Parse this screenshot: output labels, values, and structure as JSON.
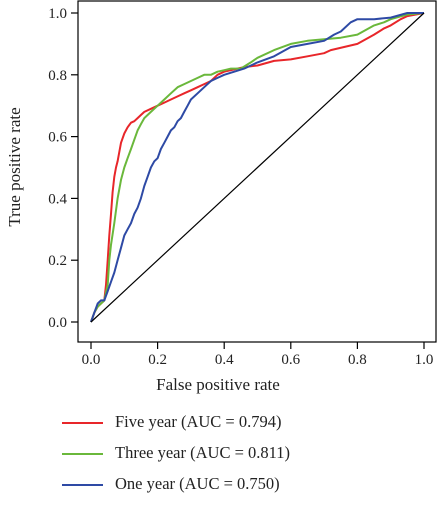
{
  "chart_data": {
    "type": "line",
    "xlabel": "False positive rate",
    "ylabel": "True positive rate",
    "xlim": [
      0,
      1
    ],
    "ylim": [
      0,
      1
    ],
    "x_ticks": [
      "0.0",
      "0.2",
      "0.4",
      "0.6",
      "0.8",
      "1.0"
    ],
    "y_ticks": [
      "0.0",
      "0.2",
      "0.4",
      "0.6",
      "0.8",
      "1.0"
    ],
    "grid": false,
    "legend_position": "below",
    "series": [
      {
        "name": "Five year (AUC = 0.794)",
        "color": "#e8262a",
        "points": [
          [
            0,
            0
          ],
          [
            0.01,
            0.03
          ],
          [
            0.02,
            0.05
          ],
          [
            0.03,
            0.06
          ],
          [
            0.04,
            0.07
          ],
          [
            0.045,
            0.12
          ],
          [
            0.05,
            0.2
          ],
          [
            0.055,
            0.28
          ],
          [
            0.06,
            0.35
          ],
          [
            0.065,
            0.42
          ],
          [
            0.07,
            0.47
          ],
          [
            0.075,
            0.5
          ],
          [
            0.08,
            0.52
          ],
          [
            0.085,
            0.55
          ],
          [
            0.09,
            0.58
          ],
          [
            0.1,
            0.61
          ],
          [
            0.11,
            0.63
          ],
          [
            0.12,
            0.645
          ],
          [
            0.13,
            0.65
          ],
          [
            0.14,
            0.66
          ],
          [
            0.15,
            0.67
          ],
          [
            0.16,
            0.68
          ],
          [
            0.18,
            0.69
          ],
          [
            0.2,
            0.7
          ],
          [
            0.22,
            0.71
          ],
          [
            0.24,
            0.72
          ],
          [
            0.26,
            0.73
          ],
          [
            0.28,
            0.74
          ],
          [
            0.3,
            0.75
          ],
          [
            0.32,
            0.76
          ],
          [
            0.34,
            0.77
          ],
          [
            0.36,
            0.78
          ],
          [
            0.38,
            0.8
          ],
          [
            0.4,
            0.81
          ],
          [
            0.42,
            0.815
          ],
          [
            0.44,
            0.82
          ],
          [
            0.46,
            0.825
          ],
          [
            0.5,
            0.83
          ],
          [
            0.55,
            0.845
          ],
          [
            0.6,
            0.85
          ],
          [
            0.65,
            0.86
          ],
          [
            0.7,
            0.87
          ],
          [
            0.72,
            0.88
          ],
          [
            0.76,
            0.89
          ],
          [
            0.8,
            0.9
          ],
          [
            0.85,
            0.93
          ],
          [
            0.88,
            0.95
          ],
          [
            0.9,
            0.96
          ],
          [
            0.93,
            0.98
          ],
          [
            0.95,
            0.99
          ],
          [
            1,
            1
          ]
        ]
      },
      {
        "name": "Three year (AUC = 0.811)",
        "color": "#6ab83b",
        "points": [
          [
            0,
            0
          ],
          [
            0.01,
            0.03
          ],
          [
            0.02,
            0.05
          ],
          [
            0.03,
            0.06
          ],
          [
            0.04,
            0.07
          ],
          [
            0.05,
            0.12
          ],
          [
            0.055,
            0.2
          ],
          [
            0.06,
            0.25
          ],
          [
            0.07,
            0.32
          ],
          [
            0.08,
            0.4
          ],
          [
            0.09,
            0.46
          ],
          [
            0.1,
            0.5
          ],
          [
            0.11,
            0.53
          ],
          [
            0.12,
            0.56
          ],
          [
            0.13,
            0.59
          ],
          [
            0.14,
            0.62
          ],
          [
            0.15,
            0.64
          ],
          [
            0.16,
            0.66
          ],
          [
            0.18,
            0.68
          ],
          [
            0.2,
            0.7
          ],
          [
            0.22,
            0.72
          ],
          [
            0.24,
            0.74
          ],
          [
            0.26,
            0.76
          ],
          [
            0.28,
            0.77
          ],
          [
            0.3,
            0.78
          ],
          [
            0.32,
            0.79
          ],
          [
            0.34,
            0.8
          ],
          [
            0.36,
            0.8
          ],
          [
            0.38,
            0.81
          ],
          [
            0.4,
            0.815
          ],
          [
            0.42,
            0.82
          ],
          [
            0.45,
            0.82
          ],
          [
            0.48,
            0.84
          ],
          [
            0.5,
            0.855
          ],
          [
            0.55,
            0.88
          ],
          [
            0.6,
            0.9
          ],
          [
            0.65,
            0.91
          ],
          [
            0.7,
            0.915
          ],
          [
            0.75,
            0.92
          ],
          [
            0.8,
            0.93
          ],
          [
            0.85,
            0.96
          ],
          [
            0.88,
            0.97
          ],
          [
            0.9,
            0.98
          ],
          [
            0.95,
            0.995
          ],
          [
            1,
            1
          ]
        ]
      },
      {
        "name": "One year (AUC = 0.750)",
        "color": "#2e4aa5",
        "points": [
          [
            0,
            0
          ],
          [
            0.01,
            0.03
          ],
          [
            0.02,
            0.06
          ],
          [
            0.03,
            0.07
          ],
          [
            0.04,
            0.07
          ],
          [
            0.05,
            0.1
          ],
          [
            0.06,
            0.13
          ],
          [
            0.07,
            0.16
          ],
          [
            0.08,
            0.2
          ],
          [
            0.09,
            0.24
          ],
          [
            0.1,
            0.28
          ],
          [
            0.11,
            0.3
          ],
          [
            0.12,
            0.32
          ],
          [
            0.13,
            0.35
          ],
          [
            0.14,
            0.37
          ],
          [
            0.15,
            0.4
          ],
          [
            0.16,
            0.44
          ],
          [
            0.17,
            0.47
          ],
          [
            0.18,
            0.5
          ],
          [
            0.19,
            0.52
          ],
          [
            0.2,
            0.53
          ],
          [
            0.21,
            0.56
          ],
          [
            0.22,
            0.58
          ],
          [
            0.23,
            0.6
          ],
          [
            0.24,
            0.62
          ],
          [
            0.25,
            0.63
          ],
          [
            0.26,
            0.65
          ],
          [
            0.27,
            0.66
          ],
          [
            0.28,
            0.68
          ],
          [
            0.29,
            0.7
          ],
          [
            0.3,
            0.72
          ],
          [
            0.32,
            0.74
          ],
          [
            0.34,
            0.76
          ],
          [
            0.36,
            0.78
          ],
          [
            0.38,
            0.79
          ],
          [
            0.4,
            0.8
          ],
          [
            0.43,
            0.81
          ],
          [
            0.46,
            0.82
          ],
          [
            0.5,
            0.84
          ],
          [
            0.55,
            0.86
          ],
          [
            0.6,
            0.89
          ],
          [
            0.65,
            0.9
          ],
          [
            0.7,
            0.91
          ],
          [
            0.73,
            0.93
          ],
          [
            0.75,
            0.94
          ],
          [
            0.78,
            0.97
          ],
          [
            0.8,
            0.98
          ],
          [
            0.82,
            0.98
          ],
          [
            0.85,
            0.98
          ],
          [
            0.9,
            0.985
          ],
          [
            0.95,
            1.0
          ],
          [
            1,
            1
          ]
        ]
      }
    ],
    "reference_line": {
      "from": [
        0,
        0
      ],
      "to": [
        1,
        1
      ],
      "color": "#000000"
    }
  }
}
